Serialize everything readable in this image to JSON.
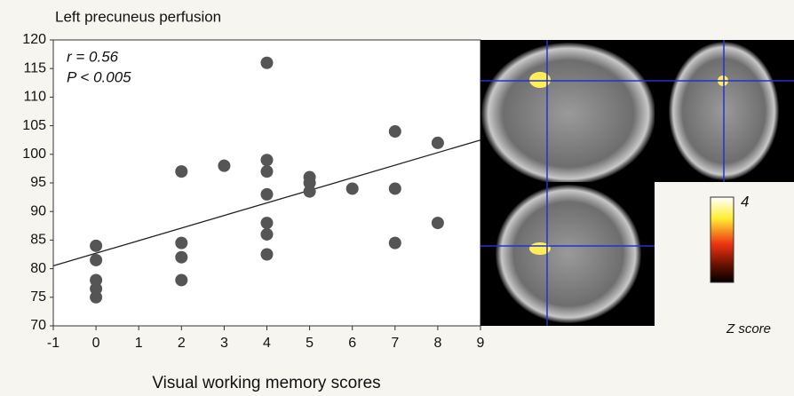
{
  "chart_data": {
    "type": "scatter",
    "title": "Left precuneus perfusion",
    "x_label": "Visual working memory scores",
    "annotations": [
      "r = 0.56",
      "P < 0.005"
    ],
    "xlim": [
      -1,
      9
    ],
    "xticks": [
      -1,
      0,
      1,
      2,
      3,
      4,
      5,
      6,
      7,
      8,
      9
    ],
    "ylim": [
      70,
      120
    ],
    "yticks": [
      70,
      75,
      80,
      85,
      90,
      95,
      100,
      105,
      110,
      115,
      120
    ],
    "color": "#555555",
    "x": [
      0,
      0,
      0,
      0,
      0,
      2,
      2,
      2,
      2,
      3,
      4,
      4,
      4,
      4,
      4,
      4,
      4,
      5,
      5,
      5,
      6,
      7,
      7,
      7,
      8,
      8
    ],
    "y": [
      84,
      81.5,
      78,
      76.5,
      75,
      97,
      84.5,
      82,
      78,
      98,
      116,
      99,
      97,
      93,
      88,
      86,
      82.5,
      96,
      95,
      93.5,
      94,
      104,
      94,
      84.5,
      102,
      88
    ],
    "trendline": {
      "x": [
        -1,
        9
      ],
      "y": [
        80.5,
        102.5
      ]
    },
    "colorbar": {
      "max": 4,
      "title": "Z score"
    }
  }
}
